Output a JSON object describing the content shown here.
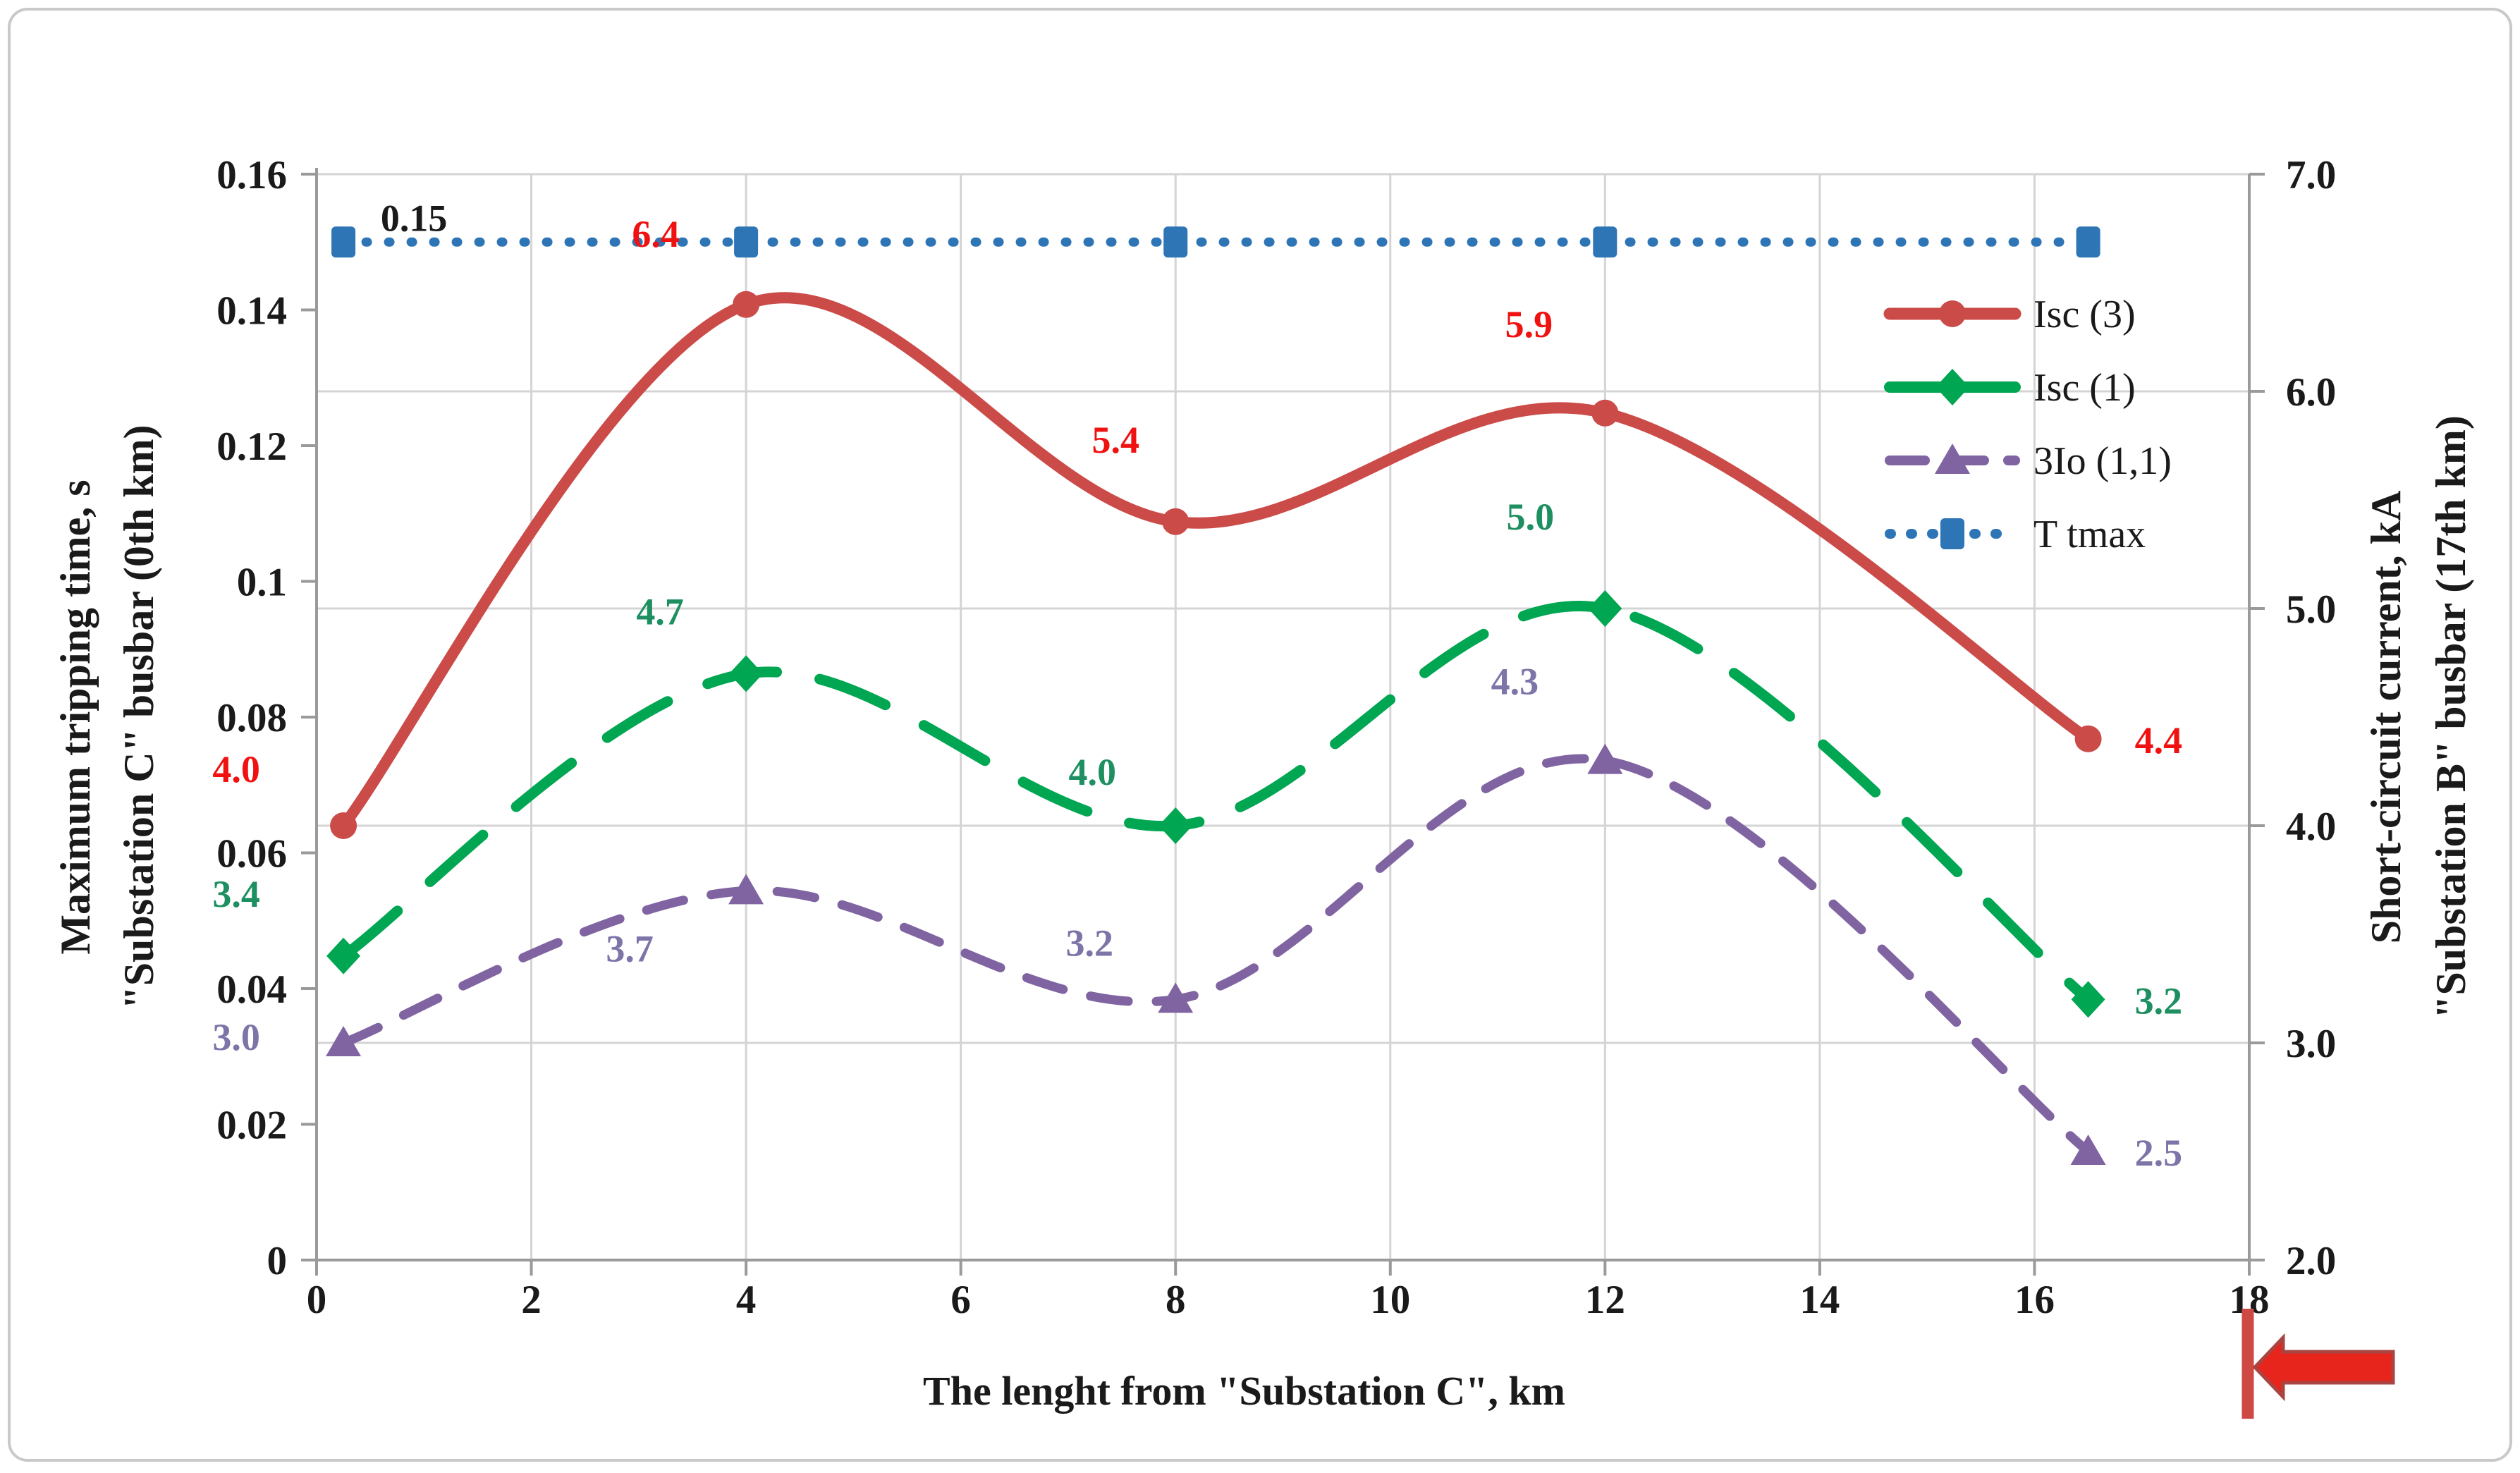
{
  "figure": {
    "background": "#FFFFFF",
    "border_color": "#C9C9C9",
    "grid_color": "#D4D4D4",
    "axis_color": "#9A9A9A",
    "text_color": "#1A1A1A"
  },
  "chart_data": {
    "type": "line",
    "title": "",
    "xlabel": "The lenght from \"Substation C\", km",
    "x_axis": {
      "min": 0,
      "max": 18,
      "tick_values": [
        0,
        2,
        4,
        6,
        8,
        10,
        12,
        14,
        16,
        18
      ],
      "tick_labels": [
        "0",
        "2",
        "4",
        "6",
        "8",
        "10",
        "12",
        "14",
        "16",
        "18"
      ],
      "grid_values": [
        2,
        4,
        6,
        8,
        10,
        12,
        14,
        16
      ]
    },
    "left_axis": {
      "title_line1": "Maximum tripping time, s",
      "title_line2": "\"Substation C\" busbar (0th km)",
      "min": 0,
      "max": 0.16,
      "tick_values": [
        0.16,
        0.14,
        0.12,
        0.1,
        0.08,
        0.06,
        0.04,
        0.02,
        0
      ],
      "tick_labels": [
        "0.16",
        "0.14",
        "0.12",
        "0.1",
        "0.08",
        "0.06",
        "0.04",
        "0.02",
        "0"
      ]
    },
    "right_axis": {
      "title_line1": "Short-circuit current, kA",
      "title_line2": "\"Substation B\" busbar (17th km)",
      "min": 2.0,
      "max": 7.0,
      "tick_values": [
        7,
        6,
        5,
        4,
        3,
        2
      ],
      "tick_labels": [
        "7.0",
        "6.0",
        "5.0",
        "4.0",
        "3.0",
        "2.0"
      ],
      "grid_values": [
        3,
        4,
        5,
        6,
        7
      ]
    },
    "x": [
      0.25,
      4,
      8,
      12,
      16.5
    ],
    "series": [
      {
        "id": "isc3",
        "name": "Isc (3)",
        "axis": "right",
        "color": "#CB4B48",
        "label_color": "#F01111",
        "marker": "circle",
        "line_width": 16,
        "dash": "",
        "smooth": true,
        "values": [
          4.0,
          6.4,
          5.4,
          5.9,
          4.4
        ],
        "point_labels": [
          {
            "i": 0,
            "text": "4.0",
            "dx": -152,
            "dy": -62
          },
          {
            "i": 1,
            "text": "6.4",
            "dx": -128,
            "dy": -82
          },
          {
            "i": 2,
            "text": "5.4",
            "dx": -85,
            "dy": -98
          },
          {
            "i": 3,
            "text": "5.9",
            "dx": -108,
            "dy": -108
          },
          {
            "i": 4,
            "text": "4.4",
            "dx": 66,
            "dy": 20,
            "anchor": "start"
          }
        ]
      },
      {
        "id": "isc1",
        "name": "Isc (1)",
        "axis": "right",
        "color": "#00A651",
        "label_color": "#1D8F60",
        "marker": "diamond",
        "line_width": 15,
        "dash": "100 62",
        "smooth": true,
        "values": [
          3.4,
          4.7,
          4.0,
          5.0,
          3.2
        ],
        "point_labels": [
          {
            "i": 0,
            "text": "3.4",
            "dx": -152,
            "dy": -70
          },
          {
            "i": 1,
            "text": "4.7",
            "dx": -122,
            "dy": -70
          },
          {
            "i": 2,
            "text": "4.0",
            "dx": -118,
            "dy": -58
          },
          {
            "i": 3,
            "text": "5.0",
            "dx": -106,
            "dy": -112
          },
          {
            "i": 4,
            "text": "3.2",
            "dx": 66,
            "dy": 20,
            "anchor": "start"
          }
        ]
      },
      {
        "id": "io3",
        "name": "3Io (1,1)",
        "axis": "right",
        "color": "#8064A2",
        "label_color": "#7D74A8",
        "marker": "triangle",
        "line_width": 13,
        "dash": "54 40",
        "smooth": true,
        "values": [
          3.0,
          3.7,
          3.2,
          4.3,
          2.5
        ],
        "point_labels": [
          {
            "i": 0,
            "text": "3.0",
            "dx": -152,
            "dy": 10
          },
          {
            "i": 1,
            "text": "3.7",
            "dx": -165,
            "dy": 100
          },
          {
            "i": 2,
            "text": "3.2",
            "dx": -122,
            "dy": -62
          },
          {
            "i": 3,
            "text": "4.3",
            "dx": -128,
            "dy": -94
          },
          {
            "i": 4,
            "text": "2.5",
            "dx": 66,
            "dy": 20,
            "anchor": "start"
          }
        ]
      },
      {
        "id": "tmax",
        "name": "T tmax",
        "axis": "left",
        "color": "#2E75B6",
        "label_color": "#1A1A1A",
        "marker": "square",
        "line_width": 13,
        "dash": "2 30",
        "smooth": false,
        "values": [
          0.15,
          0.15,
          0.15,
          0.15,
          0.15
        ],
        "point_labels": [
          {
            "i": 0,
            "text": "0.15",
            "dx": 100,
            "dy": -16
          }
        ]
      }
    ],
    "draw_order": [
      "tmax",
      "io3",
      "isc1",
      "isc3"
    ],
    "legend": {
      "position": "inside-right",
      "order": [
        "isc3",
        "isc1",
        "io3",
        "tmax"
      ],
      "labels": [
        "Isc (3)",
        "Isc (1)",
        "3Io (1,1)",
        "T tmax"
      ]
    },
    "grid_on": true
  },
  "annotation": {
    "name": "km17-pointer",
    "points_at_km": 18,
    "bar_color": "#CE4844",
    "arrow_fill": "#E8251C",
    "arrow_stroke": "#A94442"
  }
}
